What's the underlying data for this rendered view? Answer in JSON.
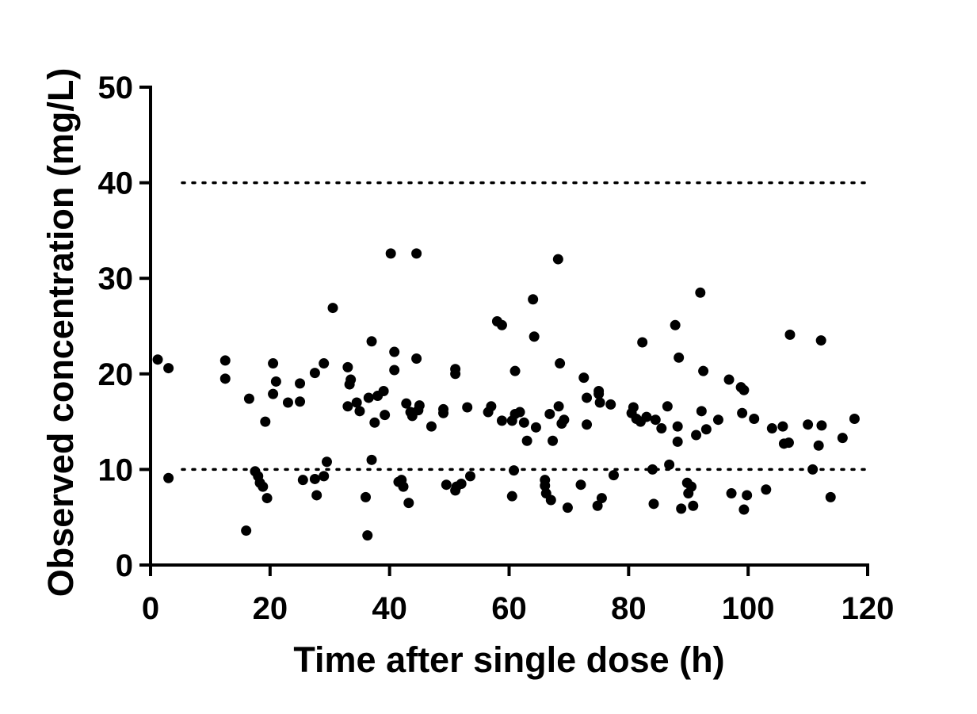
{
  "chart_data": {
    "type": "scatter",
    "title": "",
    "xlabel": "Time after single dose (h)",
    "ylabel": "Observed concentration (mg/L)",
    "xlim": [
      0,
      120
    ],
    "ylim": [
      0,
      50
    ],
    "x_ticks": [
      0,
      20,
      40,
      60,
      80,
      100,
      120
    ],
    "y_ticks": [
      0,
      10,
      20,
      30,
      40,
      50
    ],
    "x_tick_labels": [
      "0",
      "20",
      "40",
      "60",
      "80",
      "100",
      "120"
    ],
    "y_tick_labels": [
      "0",
      "10",
      "20",
      "30",
      "40",
      "50"
    ],
    "grid": false,
    "legend": "none",
    "reference_lines": [
      {
        "axis": "y",
        "value": 10,
        "style": "dotted"
      },
      {
        "axis": "y",
        "value": 40,
        "style": "dotted"
      }
    ],
    "marker_color": "#000000",
    "points": [
      [
        1.2,
        21.5
      ],
      [
        3.0,
        20.6
      ],
      [
        3.0,
        9.1
      ],
      [
        12.5,
        21.4
      ],
      [
        12.5,
        19.5
      ],
      [
        16.0,
        3.6
      ],
      [
        16.5,
        17.4
      ],
      [
        17.5,
        9.8
      ],
      [
        18.0,
        9.3
      ],
      [
        18.3,
        8.6
      ],
      [
        18.8,
        8.2
      ],
      [
        19.2,
        15.0
      ],
      [
        19.5,
        7.0
      ],
      [
        20.5,
        21.1
      ],
      [
        20.5,
        17.9
      ],
      [
        21.0,
        19.2
      ],
      [
        23.0,
        17.0
      ],
      [
        25.0,
        19.0
      ],
      [
        25.0,
        17.1
      ],
      [
        25.5,
        8.9
      ],
      [
        27.5,
        20.1
      ],
      [
        27.5,
        9.0
      ],
      [
        27.8,
        7.3
      ],
      [
        29.0,
        21.1
      ],
      [
        29.0,
        9.3
      ],
      [
        29.5,
        10.8
      ],
      [
        30.5,
        26.9
      ],
      [
        33.0,
        20.7
      ],
      [
        33.0,
        16.6
      ],
      [
        33.3,
        18.9
      ],
      [
        33.5,
        19.4
      ],
      [
        34.5,
        17.0
      ],
      [
        35.0,
        16.1
      ],
      [
        36.0,
        7.1
      ],
      [
        36.3,
        3.1
      ],
      [
        36.5,
        17.5
      ],
      [
        37.0,
        23.4
      ],
      [
        37.0,
        11.0
      ],
      [
        37.5,
        14.9
      ],
      [
        38.0,
        17.7
      ],
      [
        39.0,
        18.2
      ],
      [
        39.2,
        15.7
      ],
      [
        40.2,
        32.6
      ],
      [
        40.8,
        22.3
      ],
      [
        40.8,
        20.4
      ],
      [
        41.5,
        8.7
      ],
      [
        42.0,
        8.9
      ],
      [
        42.3,
        8.2
      ],
      [
        42.8,
        16.9
      ],
      [
        43.2,
        6.5
      ],
      [
        43.5,
        16.0
      ],
      [
        43.8,
        15.6
      ],
      [
        44.5,
        32.6
      ],
      [
        44.5,
        21.6
      ],
      [
        44.8,
        16.2
      ],
      [
        45.0,
        16.7
      ],
      [
        47.0,
        14.5
      ],
      [
        49.0,
        16.3
      ],
      [
        49.0,
        15.9
      ],
      [
        49.5,
        8.4
      ],
      [
        51.0,
        20.5
      ],
      [
        51.0,
        20.0
      ],
      [
        51.0,
        7.8
      ],
      [
        51.2,
        8.2
      ],
      [
        52.0,
        8.5
      ],
      [
        53.0,
        16.5
      ],
      [
        53.5,
        9.3
      ],
      [
        56.5,
        16.0
      ],
      [
        57.0,
        16.6
      ],
      [
        58.0,
        25.5
      ],
      [
        58.8,
        25.1
      ],
      [
        58.8,
        15.1
      ],
      [
        60.5,
        15.1
      ],
      [
        60.5,
        7.2
      ],
      [
        60.8,
        9.9
      ],
      [
        61.0,
        20.3
      ],
      [
        61.0,
        15.8
      ],
      [
        61.8,
        16.0
      ],
      [
        62.5,
        14.9
      ],
      [
        63.0,
        13.0
      ],
      [
        64.0,
        27.8
      ],
      [
        64.2,
        23.9
      ],
      [
        64.5,
        14.4
      ],
      [
        66.0,
        8.9
      ],
      [
        66.0,
        8.3
      ],
      [
        66.2,
        7.5
      ],
      [
        66.8,
        15.8
      ],
      [
        67.0,
        6.8
      ],
      [
        67.3,
        13.0
      ],
      [
        68.2,
        32.0
      ],
      [
        68.3,
        16.6
      ],
      [
        68.5,
        21.1
      ],
      [
        68.8,
        14.8
      ],
      [
        69.2,
        15.2
      ],
      [
        69.8,
        6.0
      ],
      [
        72.0,
        8.4
      ],
      [
        72.5,
        19.6
      ],
      [
        73.0,
        17.5
      ],
      [
        73.0,
        14.7
      ],
      [
        74.8,
        6.2
      ],
      [
        75.0,
        18.2
      ],
      [
        75.0,
        17.9
      ],
      [
        75.2,
        17.0
      ],
      [
        75.5,
        7.0
      ],
      [
        77.0,
        16.8
      ],
      [
        77.5,
        9.4
      ],
      [
        80.5,
        15.9
      ],
      [
        80.8,
        16.5
      ],
      [
        81.3,
        15.3
      ],
      [
        82.0,
        15.0
      ],
      [
        82.3,
        23.3
      ],
      [
        83.0,
        15.5
      ],
      [
        84.0,
        10.0
      ],
      [
        84.2,
        6.4
      ],
      [
        84.5,
        15.2
      ],
      [
        85.5,
        14.3
      ],
      [
        86.5,
        16.6
      ],
      [
        86.8,
        10.5
      ],
      [
        87.8,
        25.1
      ],
      [
        88.2,
        14.5
      ],
      [
        88.2,
        12.9
      ],
      [
        88.4,
        21.7
      ],
      [
        88.8,
        5.9
      ],
      [
        89.8,
        8.6
      ],
      [
        90.0,
        7.5
      ],
      [
        90.5,
        8.2
      ],
      [
        90.8,
        6.2
      ],
      [
        91.3,
        13.6
      ],
      [
        92.0,
        28.5
      ],
      [
        92.2,
        16.1
      ],
      [
        92.5,
        20.3
      ],
      [
        93.0,
        14.2
      ],
      [
        95.0,
        15.2
      ],
      [
        96.8,
        19.4
      ],
      [
        97.2,
        7.5
      ],
      [
        98.8,
        18.6
      ],
      [
        99.0,
        15.9
      ],
      [
        99.3,
        18.3
      ],
      [
        99.3,
        5.8
      ],
      [
        99.8,
        7.3
      ],
      [
        101.0,
        15.3
      ],
      [
        103.0,
        7.9
      ],
      [
        104.0,
        14.3
      ],
      [
        105.8,
        14.5
      ],
      [
        106.0,
        12.7
      ],
      [
        106.8,
        12.8
      ],
      [
        107.0,
        24.1
      ],
      [
        110.0,
        14.7
      ],
      [
        110.8,
        10.0
      ],
      [
        111.8,
        12.5
      ],
      [
        112.2,
        23.5
      ],
      [
        112.3,
        14.6
      ],
      [
        113.8,
        7.1
      ],
      [
        115.8,
        13.3
      ],
      [
        117.8,
        15.3
      ]
    ]
  }
}
